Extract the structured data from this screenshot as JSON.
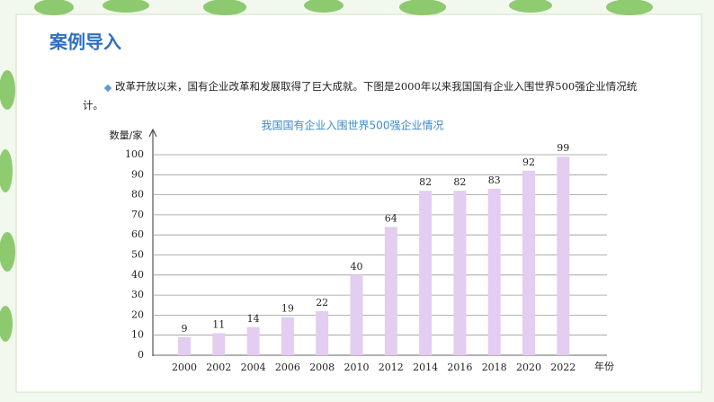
{
  "slide_title": "案例导入",
  "intro": "改革开放以来，国有企业改革和发展取得了巨大成就。下图是2000年以来我国国有企业入围世界500强企业情况统计。",
  "chart_data": {
    "type": "bar",
    "title": "我国国有企业入围世界500强企业情况",
    "y_label": "数量/家",
    "x_label": "年份",
    "categories": [
      "2000",
      "2002",
      "2004",
      "2006",
      "2008",
      "2010",
      "2012",
      "2014",
      "2016",
      "2018",
      "2020",
      "2022"
    ],
    "values": [
      9,
      11,
      14,
      19,
      22,
      40,
      64,
      82,
      82,
      83,
      92,
      99
    ],
    "color": "#e3cdf0",
    "ylim": [
      0,
      100
    ],
    "yticks": [
      0,
      10,
      20,
      30,
      40,
      50,
      60,
      70,
      80,
      90,
      100
    ],
    "grid": true
  }
}
